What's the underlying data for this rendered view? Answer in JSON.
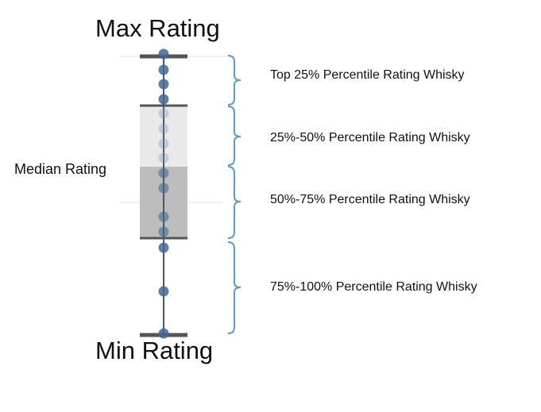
{
  "labels": {
    "max": "Max Rating",
    "min": "Min Rating",
    "median": "Median Rating"
  },
  "segments": [
    {
      "label": "Top 25% Percentile Rating Whisky"
    },
    {
      "label": "25%-50% Percentile Rating Whisky"
    },
    {
      "label": "50%-75% Percentile Rating Whisky"
    },
    {
      "label": "75%-100% Percentile Rating Whisky"
    }
  ],
  "colors": {
    "whisker": "#555555",
    "box_upper": "#e9e9e9",
    "box_lower": "#bdbdbd",
    "dot": "#3f6a93",
    "bracket": "#5b9bd5"
  }
}
